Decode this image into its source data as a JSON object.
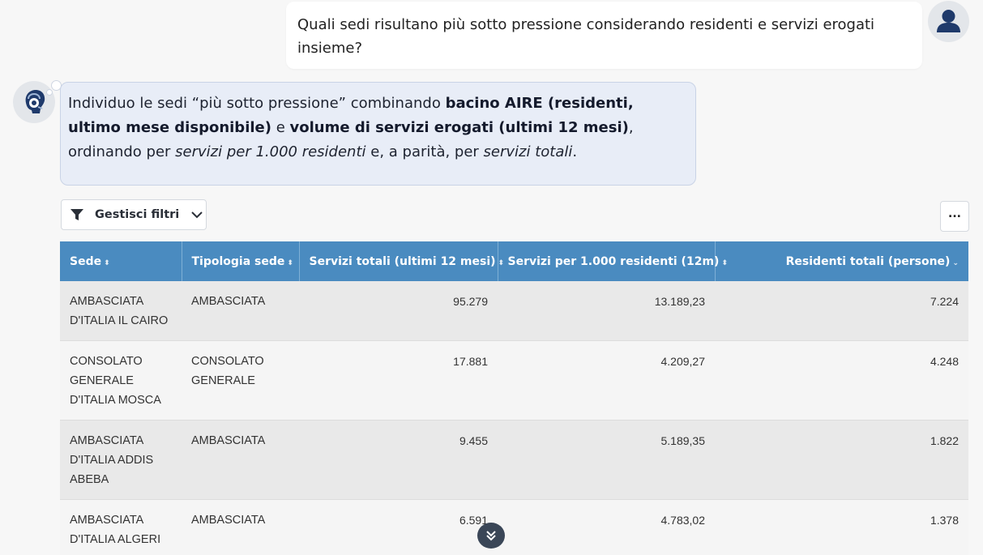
{
  "user_message": {
    "text": "Quali sedi risultano più sotto pressione considerando residenti e servizi erogati insieme?"
  },
  "bot_message": {
    "part1": "Individuo le sedi “più sotto pressione” combinando ",
    "bold1": "bacino AIRE (residenti, ultimo mese disponibile)",
    "part2": " e ",
    "bold2": "volume di servizi erogati (ultimi 12 mesi)",
    "part3": ", ordinando per ",
    "italic1": "servizi per 1.000 residenti",
    "part4": " e, a parità, per ",
    "italic2": "servizi totali",
    "part5": "."
  },
  "toolbar": {
    "filter_label": "Gestisci filtri",
    "more_label": "..."
  },
  "table": {
    "columns": [
      {
        "label": "Sede",
        "sort": "both"
      },
      {
        "label": "Tipologia sede",
        "sort": "both"
      },
      {
        "label": "Servizi totali (ultimi 12 mesi)",
        "sort": "both"
      },
      {
        "label": "Servizi per 1.000 residenti (12m)",
        "sort": "both"
      },
      {
        "label": "Residenti totali (persone)",
        "sort": "desc"
      }
    ],
    "rows": [
      {
        "sede": "AMBASCIATA D'ITALIA IL CAIRO",
        "tipologia": "AMBASCIATA",
        "servizi_totali": "95.279",
        "servizi_per_1000": "13.189,23",
        "residenti": "7.224"
      },
      {
        "sede": "CONSOLATO GENERALE D'ITALIA MOSCA",
        "tipologia": "CONSOLATO GENERALE",
        "servizi_totali": "17.881",
        "servizi_per_1000": "4.209,27",
        "residenti": "4.248"
      },
      {
        "sede": "AMBASCIATA D'ITALIA ADDIS ABEBA",
        "tipologia": "AMBASCIATA",
        "servizi_totali": "9.455",
        "servizi_per_1000": "5.189,35",
        "residenti": "1.822"
      },
      {
        "sede": "AMBASCIATA D'ITALIA ALGERI",
        "tipologia": "AMBASCIATA",
        "servizi_totali": "6.591",
        "servizi_per_1000": "4.783,02",
        "residenti": "1.378"
      }
    ]
  },
  "icons": {
    "user_avatar": "user-icon",
    "bot_avatar": "assistant-icon",
    "filter": "filter-icon",
    "chevron": "chevron-down-icon",
    "scroll": "double-chevron-down-icon"
  },
  "colors": {
    "header_bg": "#4a8bc0",
    "bot_bubble_bg": "#e8edf7",
    "avatar_fg": "#1f3a6b"
  }
}
